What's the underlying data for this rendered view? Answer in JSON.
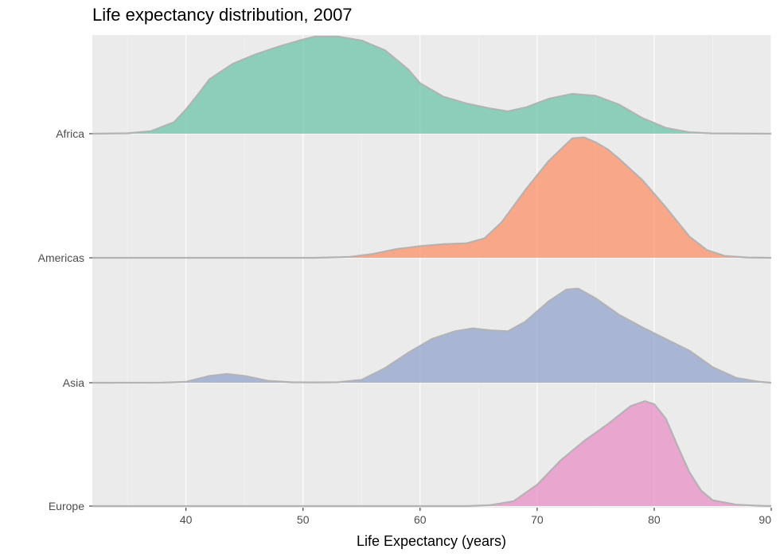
{
  "chart_data": {
    "type": "area",
    "title": "Life expectancy distribution, 2007",
    "xlabel": "Life Expectancy (years)",
    "ylabel": "",
    "xlim": [
      32,
      90
    ],
    "x_ticks": [
      40,
      50,
      60,
      70,
      80,
      90
    ],
    "grid": true,
    "legend": "none",
    "series": [
      {
        "name": "Africa",
        "color": "#66c2a5",
        "points": [
          [
            32,
            0
          ],
          [
            35,
            0.004
          ],
          [
            37,
            0.025
          ],
          [
            39,
            0.12
          ],
          [
            40,
            0.25
          ],
          [
            41,
            0.4
          ],
          [
            42,
            0.56
          ],
          [
            44,
            0.72
          ],
          [
            46,
            0.82
          ],
          [
            48,
            0.9
          ],
          [
            50,
            0.97
          ],
          [
            51,
            1.0
          ],
          [
            53,
            1.0
          ],
          [
            55,
            0.96
          ],
          [
            57,
            0.86
          ],
          [
            59,
            0.66
          ],
          [
            60,
            0.52
          ],
          [
            62,
            0.38
          ],
          [
            64,
            0.31
          ],
          [
            66,
            0.26
          ],
          [
            67.5,
            0.23
          ],
          [
            69,
            0.27
          ],
          [
            71,
            0.36
          ],
          [
            73,
            0.41
          ],
          [
            75,
            0.39
          ],
          [
            77,
            0.3
          ],
          [
            79,
            0.16
          ],
          [
            81,
            0.06
          ],
          [
            83,
            0.015
          ],
          [
            85,
            0.003
          ],
          [
            90,
            0
          ]
        ]
      },
      {
        "name": "Americas",
        "color": "#fc8d62",
        "points": [
          [
            32,
            0
          ],
          [
            51,
            0
          ],
          [
            54,
            0.01
          ],
          [
            56,
            0.04
          ],
          [
            58,
            0.09
          ],
          [
            60,
            0.12
          ],
          [
            62,
            0.14
          ],
          [
            64,
            0.15
          ],
          [
            65.5,
            0.2
          ],
          [
            67,
            0.37
          ],
          [
            69,
            0.7
          ],
          [
            71,
            1.0
          ],
          [
            73,
            1.23
          ],
          [
            74,
            1.24
          ],
          [
            75,
            1.19
          ],
          [
            76,
            1.12
          ],
          [
            77,
            1.02
          ],
          [
            79,
            0.8
          ],
          [
            81,
            0.52
          ],
          [
            83,
            0.22
          ],
          [
            84.5,
            0.08
          ],
          [
            86,
            0.02
          ],
          [
            88,
            0.003
          ],
          [
            90,
            0
          ]
        ]
      },
      {
        "name": "Asia",
        "color": "#8da0cb",
        "points": [
          [
            32,
            0
          ],
          [
            38,
            0.002
          ],
          [
            40,
            0.01
          ],
          [
            42,
            0.07
          ],
          [
            43.5,
            0.09
          ],
          [
            45,
            0.07
          ],
          [
            47,
            0.02
          ],
          [
            49,
            0.005
          ],
          [
            51,
            0.003
          ],
          [
            53,
            0.006
          ],
          [
            55,
            0.03
          ],
          [
            57,
            0.15
          ],
          [
            59,
            0.31
          ],
          [
            61,
            0.45
          ],
          [
            63,
            0.53
          ],
          [
            64.5,
            0.56
          ],
          [
            66,
            0.54
          ],
          [
            67.5,
            0.53
          ],
          [
            69,
            0.63
          ],
          [
            71,
            0.84
          ],
          [
            72.5,
            0.96
          ],
          [
            73.5,
            0.97
          ],
          [
            75,
            0.87
          ],
          [
            77,
            0.7
          ],
          [
            79,
            0.57
          ],
          [
            81,
            0.45
          ],
          [
            83,
            0.33
          ],
          [
            85,
            0.16
          ],
          [
            87,
            0.05
          ],
          [
            89,
            0.01
          ],
          [
            90,
            0
          ]
        ]
      },
      {
        "name": "Europe",
        "color": "#e78ac3",
        "points": [
          [
            32,
            0
          ],
          [
            64,
            0
          ],
          [
            66,
            0.01
          ],
          [
            68,
            0.05
          ],
          [
            70,
            0.22
          ],
          [
            72,
            0.47
          ],
          [
            74,
            0.67
          ],
          [
            76,
            0.84
          ],
          [
            78,
            1.03
          ],
          [
            79.2,
            1.08
          ],
          [
            80,
            1.05
          ],
          [
            81,
            0.9
          ],
          [
            82,
            0.62
          ],
          [
            83,
            0.35
          ],
          [
            84,
            0.16
          ],
          [
            85,
            0.06
          ],
          [
            87,
            0.015
          ],
          [
            89,
            0.003
          ],
          [
            90,
            0
          ]
        ]
      }
    ]
  }
}
